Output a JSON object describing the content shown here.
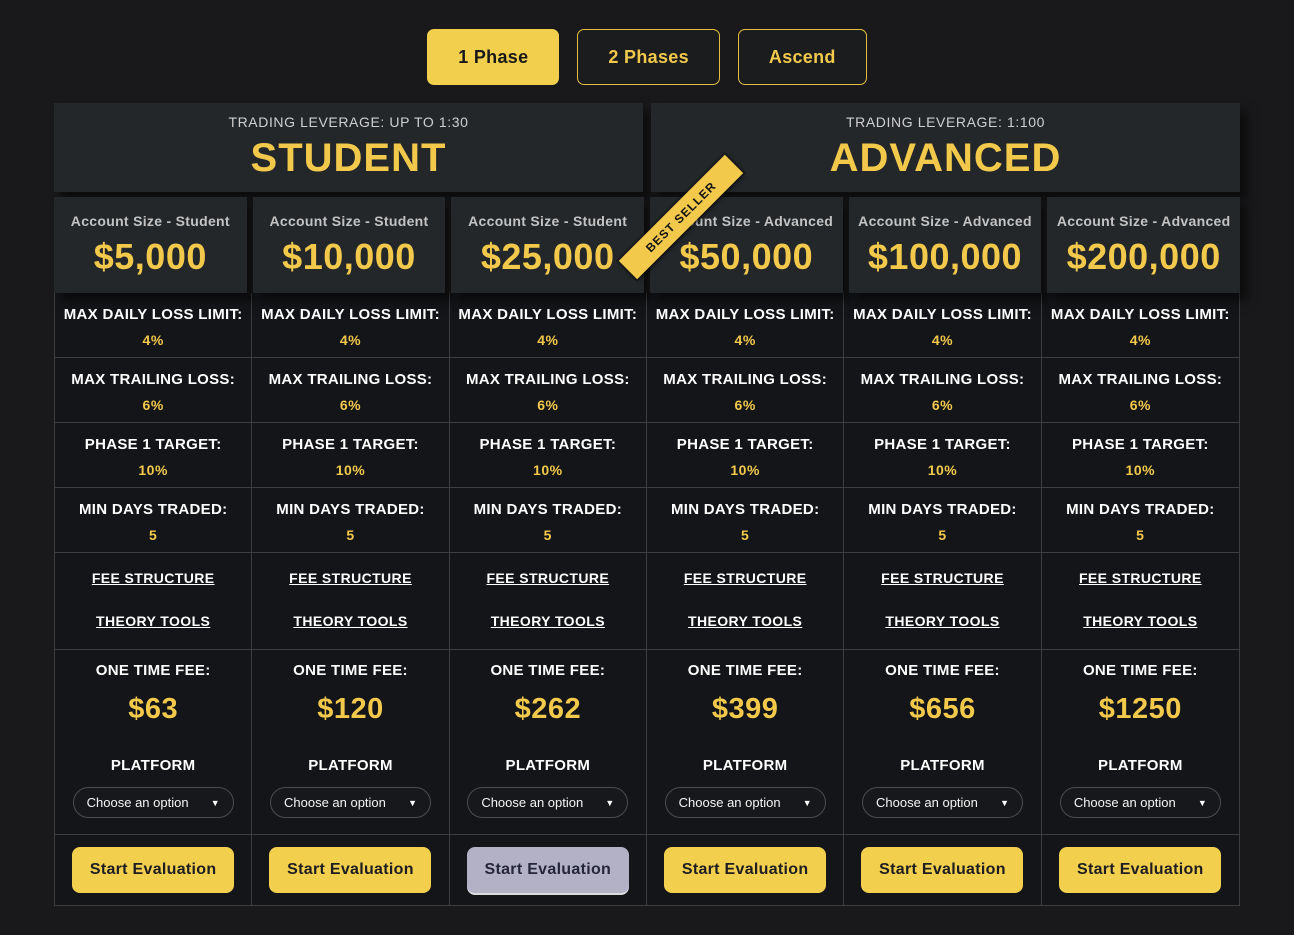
{
  "tabs": [
    {
      "label": "1 Phase"
    },
    {
      "label": "2 Phases"
    },
    {
      "label": "Ascend"
    }
  ],
  "groups": [
    {
      "leverage": "TRADING LEVERAGE: UP TO 1:30",
      "name": "STUDENT"
    },
    {
      "leverage": "TRADING LEVERAGE: 1:100",
      "name": "ADVANCED"
    }
  ],
  "badge": {
    "best_seller": "BEST SELLER"
  },
  "rows": {
    "daily": "MAX DAILY LOSS LIMIT:",
    "trailing": "MAX TRAILING LOSS:",
    "target": "PHASE 1 TARGET:",
    "days": "MIN DAYS TRADED:",
    "fee_structure": "FEE STRUCTURE",
    "theory_tools": "THEORY TOOLS",
    "fee": "ONE TIME FEE:",
    "platform": "PLATFORM",
    "choose": "Choose an option",
    "choose_arrow": "▼",
    "start": "Start Evaluation"
  },
  "columns": [
    {
      "account_label": "Account Size - Student",
      "size": "$5,000",
      "daily": "4%",
      "trailing": "6%",
      "target": "10%",
      "days": "5",
      "fee": "$63"
    },
    {
      "account_label": "Account Size - Student",
      "size": "$10,000",
      "daily": "4%",
      "trailing": "6%",
      "target": "10%",
      "days": "5",
      "fee": "$120"
    },
    {
      "account_label": "Account Size - Student",
      "size": "$25,000",
      "daily": "4%",
      "trailing": "6%",
      "target": "10%",
      "days": "5",
      "fee": "$262"
    },
    {
      "account_label": "Account Size - Advanced",
      "size": "$50,000",
      "daily": "4%",
      "trailing": "6%",
      "target": "10%",
      "days": "5",
      "fee": "$399"
    },
    {
      "account_label": "Account Size - Advanced",
      "size": "$100,000",
      "daily": "4%",
      "trailing": "6%",
      "target": "10%",
      "days": "5",
      "fee": "$656"
    },
    {
      "account_label": "Account Size - Advanced",
      "size": "$200,000",
      "daily": "4%",
      "trailing": "6%",
      "target": "10%",
      "days": "5",
      "fee": "$1250"
    }
  ],
  "colors": {
    "accent": "#f2c94b",
    "button_yellow": "#f2cf4d",
    "button_pressed": "#b3b1c6",
    "card_bg": "#24272a",
    "cell_bg": "#141518",
    "page_bg": "#19191b"
  }
}
